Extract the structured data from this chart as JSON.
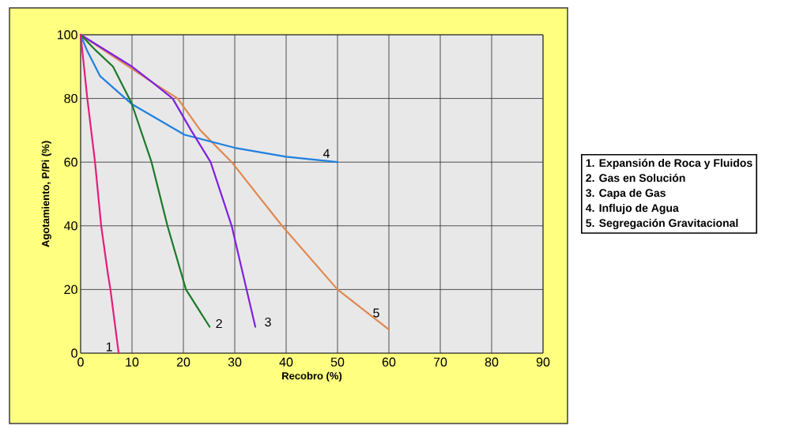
{
  "chart_data": {
    "type": "line",
    "xlabel": "Recobro (%)",
    "ylabel": "Agotamiento, P/Pi (%)",
    "xlim": [
      0,
      90
    ],
    "ylim": [
      0,
      100
    ],
    "xticks": [
      0,
      10,
      20,
      30,
      40,
      50,
      60,
      70,
      80,
      90
    ],
    "yticks": [
      0,
      20,
      40,
      60,
      80,
      100
    ],
    "grid": true,
    "marker": "none",
    "line_style": "solid",
    "annotations": [
      "1. Expansión de Roca y Fluidos",
      "2. Gas en Solución",
      "3. Capa de Gas",
      "4. Influjo de Agua",
      "5. Segregación Gravitacional"
    ],
    "series": [
      {
        "name": "1",
        "color": "#e0207a",
        "x": [
          0,
          1.3,
          2.8,
          4.0,
          5.3,
          5.8,
          7.4
        ],
        "values": [
          100,
          80,
          60,
          40,
          25,
          20,
          0
        ]
      },
      {
        "name": "2",
        "color": "#1a7a2a",
        "x": [
          0,
          3,
          6.3,
          9.9,
          13.8,
          16.9,
          20.5,
          25.1
        ],
        "values": [
          100,
          95,
          90,
          78.6,
          60,
          40,
          20,
          8.3
        ]
      },
      {
        "name": "3",
        "color": "#8020e0",
        "x": [
          0,
          5,
          10,
          14,
          17.9,
          21.5,
          25.3,
          29.4,
          32.3,
          34.0
        ],
        "values": [
          100,
          95,
          90,
          85,
          80,
          70,
          60,
          40,
          20,
          8.3
        ]
      },
      {
        "name": "4",
        "color": "#2080e0",
        "x": [
          0,
          1.2,
          3.8,
          9.9,
          20.2,
          30,
          40,
          50
        ],
        "values": [
          100,
          95.2,
          87,
          78.3,
          68.6,
          64.5,
          61.7,
          60
        ]
      },
      {
        "name": "5",
        "color": "#e08850",
        "x": [
          0,
          14,
          18.9,
          23.3,
          29.4,
          39.2,
          50.0,
          60
        ],
        "values": [
          100,
          85,
          80,
          70,
          60,
          40,
          20,
          7.4
        ]
      }
    ]
  }
}
